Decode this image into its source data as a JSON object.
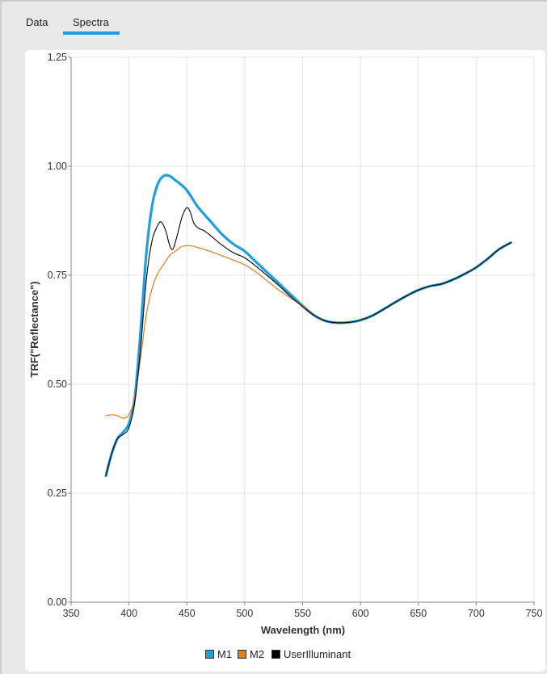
{
  "tabs": [
    {
      "label": "Data"
    },
    {
      "label": "Spectra"
    }
  ],
  "active_tab": "Spectra",
  "colors": {
    "accent": "#1ea0de",
    "M1": "#1ea0de",
    "M2": "#e07b1a",
    "UserIlluminant": "#000000"
  },
  "chart_data": {
    "type": "line",
    "title": "",
    "xlabel": "Wavelength (nm)",
    "ylabel": "TRF(\"Reflectance\")",
    "xlim": [
      350,
      750
    ],
    "ylim": [
      0,
      1.25
    ],
    "xticks": [
      "350",
      "400",
      "450",
      "500",
      "550",
      "600",
      "650",
      "700",
      "750"
    ],
    "yticks": [
      "0.00",
      "0.25",
      "0.50",
      "0.75",
      "1.00",
      "1.25"
    ],
    "grid": true,
    "legend_position": "bottom",
    "series": [
      {
        "name": "M1",
        "color": "#1ea0de",
        "x": [
          380,
          385,
          390,
          395,
          400,
          405,
          410,
          415,
          420,
          425,
          430,
          435,
          440,
          445,
          450,
          455,
          460,
          470,
          480,
          490,
          500,
          510,
          520,
          530,
          540,
          550,
          560,
          570,
          580,
          590,
          600,
          610,
          620,
          630,
          640,
          650,
          660,
          670,
          680,
          690,
          700,
          710,
          720,
          730
        ],
        "y": [
          0.29,
          0.34,
          0.375,
          0.39,
          0.41,
          0.47,
          0.62,
          0.8,
          0.91,
          0.96,
          0.978,
          0.978,
          0.968,
          0.958,
          0.945,
          0.925,
          0.905,
          0.875,
          0.845,
          0.822,
          0.805,
          0.78,
          0.755,
          0.73,
          0.705,
          0.68,
          0.658,
          0.645,
          0.641,
          0.642,
          0.647,
          0.657,
          0.672,
          0.688,
          0.703,
          0.716,
          0.725,
          0.73,
          0.74,
          0.753,
          0.768,
          0.788,
          0.81,
          0.825
        ]
      },
      {
        "name": "M2",
        "color": "#e07b1a",
        "x": [
          380,
          385,
          390,
          395,
          400,
          405,
          410,
          415,
          420,
          425,
          430,
          435,
          440,
          445,
          450,
          455,
          460,
          470,
          480,
          490,
          500,
          510,
          520,
          530,
          540,
          550,
          560,
          570,
          580,
          590,
          600,
          610,
          620,
          630,
          640,
          650,
          660,
          670,
          680,
          690,
          700,
          710,
          720,
          730
        ],
        "y": [
          0.428,
          0.43,
          0.428,
          0.422,
          0.43,
          0.47,
          0.56,
          0.66,
          0.72,
          0.755,
          0.775,
          0.795,
          0.805,
          0.815,
          0.818,
          0.817,
          0.813,
          0.805,
          0.795,
          0.785,
          0.774,
          0.757,
          0.736,
          0.715,
          0.697,
          0.68,
          0.658,
          0.645,
          0.641,
          0.642,
          0.647,
          0.657,
          0.672,
          0.688,
          0.703,
          0.716,
          0.725,
          0.73,
          0.74,
          0.753,
          0.768,
          0.788,
          0.81,
          0.825
        ]
      },
      {
        "name": "UserIlluminant",
        "color": "#000000",
        "x": [
          380,
          385,
          390,
          395,
          400,
          405,
          410,
          415,
          420,
          425,
          428,
          432,
          435,
          438,
          442,
          446,
          450,
          453,
          456,
          460,
          465,
          470,
          480,
          490,
          500,
          510,
          520,
          530,
          540,
          550,
          560,
          570,
          580,
          590,
          600,
          610,
          620,
          630,
          640,
          650,
          660,
          670,
          680,
          690,
          700,
          710,
          720,
          730
        ],
        "y": [
          0.29,
          0.34,
          0.375,
          0.385,
          0.4,
          0.46,
          0.58,
          0.74,
          0.83,
          0.865,
          0.872,
          0.85,
          0.82,
          0.81,
          0.845,
          0.885,
          0.905,
          0.895,
          0.87,
          0.858,
          0.852,
          0.842,
          0.82,
          0.802,
          0.79,
          0.77,
          0.748,
          0.725,
          0.7,
          0.678,
          0.658,
          0.645,
          0.641,
          0.642,
          0.647,
          0.657,
          0.672,
          0.688,
          0.703,
          0.716,
          0.725,
          0.73,
          0.74,
          0.753,
          0.768,
          0.788,
          0.81,
          0.825
        ]
      }
    ]
  }
}
